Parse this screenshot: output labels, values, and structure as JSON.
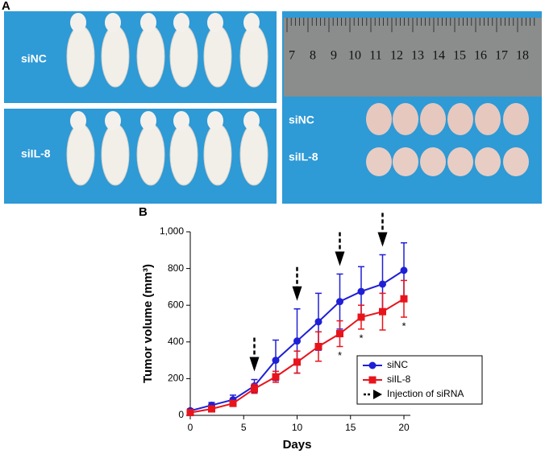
{
  "panel_a": {
    "label": "A",
    "row_labels": [
      "siNC",
      "siIL-8"
    ],
    "ruler_labels": [
      "7",
      "8",
      "9",
      "10",
      "11",
      "12",
      "13",
      "14",
      "15",
      "16",
      "17",
      "18"
    ]
  },
  "chart_data": {
    "type": "line",
    "panel_label": "B",
    "x_label": "Days",
    "y_label": "Tumor volume (mm³)",
    "x": [
      0,
      2,
      4,
      6,
      8,
      10,
      12,
      14,
      16,
      18,
      20
    ],
    "series": [
      {
        "name": "siNC",
        "color": "#1f1fd6",
        "marker": "circle",
        "values": [
          25,
          55,
          85,
          160,
          300,
          405,
          510,
          620,
          675,
          715,
          790
        ],
        "errors": [
          10,
          15,
          25,
          35,
          110,
          175,
          155,
          150,
          135,
          160,
          150
        ]
      },
      {
        "name": "siIL-8",
        "color": "#e8141c",
        "marker": "square",
        "values": [
          15,
          35,
          65,
          145,
          210,
          290,
          375,
          445,
          535,
          565,
          635
        ],
        "errors": [
          5,
          10,
          15,
          25,
          30,
          60,
          80,
          70,
          65,
          100,
          100
        ]
      }
    ],
    "injection": {
      "name": "Injection of siRNA",
      "x": [
        6,
        10,
        14,
        18
      ]
    },
    "significance": {
      "label": "*",
      "x": [
        14,
        16,
        20
      ]
    },
    "xlim": [
      0,
      20
    ],
    "xticks": [
      0,
      5,
      10,
      15,
      20
    ],
    "ylim": [
      0,
      1000
    ],
    "yticks": [
      0,
      200,
      400,
      600,
      800,
      {
        "value": 1000,
        "label": "1,000"
      }
    ]
  }
}
